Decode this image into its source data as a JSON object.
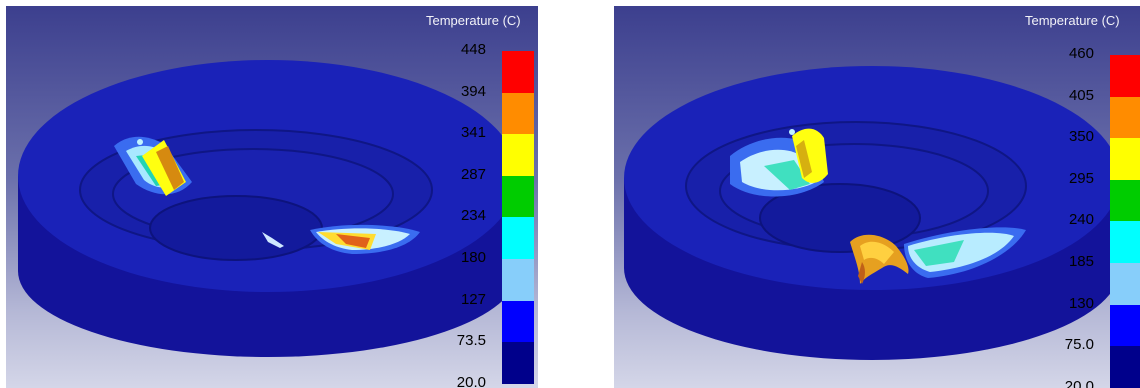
{
  "panels": [
    {
      "legend": {
        "title": "Temperature (C)",
        "ticks": [
          "448",
          "394",
          "341",
          "287",
          "234",
          "180",
          "127",
          "73.5",
          "20.0"
        ],
        "colors": [
          "#ff0000",
          "#ff8c00",
          "#ffff00",
          "#00cc00",
          "#00ffff",
          "#87cefa",
          "#0000ff",
          "#00008b"
        ]
      }
    },
    {
      "legend": {
        "title": "Temperature (C)",
        "ticks": [
          "460",
          "405",
          "350",
          "295",
          "240",
          "185",
          "130",
          "75.0",
          "20.0"
        ],
        "colors": [
          "#ff0000",
          "#ff8c00",
          "#ffff00",
          "#00cc00",
          "#00ffff",
          "#87cefa",
          "#0000ff",
          "#00008b"
        ]
      }
    }
  ]
}
